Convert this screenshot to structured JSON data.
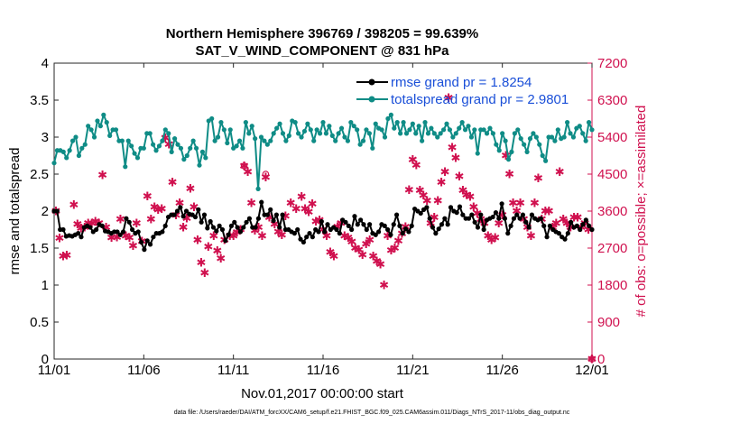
{
  "chart_data": {
    "type": "line",
    "title": "Northern Hemisphere 396769 / 398205 = 99.639%",
    "subtitle": "SAT_V_WIND_COMPONENT @ 831 hPa",
    "xlabel": "Nov.01,2017 00:00:00 start",
    "ylabel": "rmse and totalspread",
    "ylabel_right": "# of obs: o=possible; ×=assimilated",
    "footer": "data file: /Users/raeder/DAI/ATM_forcXX/CAM6_setup/f.e21.FHIST_BGC.f09_025.CAM6assim.011/Diags_NTrS_2017-11/obs_diag_output.nc",
    "x_tick_labels": [
      "11/01",
      "11/06",
      "11/11",
      "11/16",
      "11/21",
      "11/26",
      "12/01"
    ],
    "xlim": [
      0,
      30
    ],
    "ylim": [
      0,
      4
    ],
    "yticks": [
      0,
      0.5,
      1,
      1.5,
      2,
      2.5,
      3,
      3.5,
      4
    ],
    "y_tick_labels": [
      "0",
      "0.5",
      "1",
      "1.5",
      "2",
      "2.5",
      "3",
      "3.5",
      "4"
    ],
    "ylim_right": [
      0,
      7200
    ],
    "yticks_right": [
      0,
      900,
      1800,
      2700,
      3600,
      4500,
      5400,
      6300,
      7200
    ],
    "y_tick_labels_right": [
      "0",
      "900",
      "1800",
      "2700",
      "3600",
      "4500",
      "5400",
      "6300",
      "7200"
    ],
    "legend_position": "top-right",
    "colors": {
      "rmse": "#000000",
      "spread": "#0f8c86",
      "obs": "#d0114f",
      "legend_text": "#1a4fd8",
      "right_axis": "#d0114f"
    },
    "series": [
      {
        "name": "rmse grand pr = 1.8254",
        "axis": "left",
        "values": [
          2.0,
          2.0,
          1.75,
          1.75,
          1.66,
          1.67,
          1.66,
          1.68,
          1.7,
          1.65,
          1.78,
          1.8,
          1.78,
          1.72,
          1.75,
          1.82,
          1.8,
          1.73,
          1.72,
          1.7,
          1.72,
          1.72,
          1.68,
          1.72,
          1.9,
          1.85,
          1.75,
          1.7,
          1.72,
          1.58,
          1.48,
          1.6,
          1.55,
          1.65,
          1.7,
          1.7,
          1.72,
          1.8,
          1.92,
          1.95,
          1.95,
          2.0,
          2.05,
          1.93,
          2.0,
          1.96,
          1.95,
          1.92,
          2.02,
          1.85,
          1.95,
          1.77,
          1.86,
          1.78,
          1.73,
          1.8,
          1.75,
          1.6,
          1.68,
          1.8,
          1.85,
          1.78,
          1.72,
          1.78,
          1.85,
          1.9,
          1.78,
          1.78,
          1.9,
          2.12,
          1.95,
          1.95,
          2.02,
          1.87,
          1.95,
          1.78,
          1.95,
          1.75,
          1.75,
          1.72,
          1.7,
          1.75,
          1.62,
          1.58,
          1.65,
          1.7,
          1.65,
          1.75,
          1.72,
          1.86,
          1.72,
          1.82,
          1.75,
          1.78,
          1.75,
          1.7,
          1.88,
          1.85,
          1.8,
          1.75,
          1.93,
          1.82,
          1.88,
          1.82,
          1.75,
          1.82,
          1.7,
          1.68,
          1.72,
          1.82,
          1.8,
          1.75,
          1.68,
          1.82,
          1.95,
          1.8,
          1.7,
          1.76,
          1.72,
          1.8,
          2.03,
          2.0,
          1.97,
          2.02,
          2.05,
          1.9,
          1.78,
          1.7,
          1.76,
          1.82,
          1.9,
          1.82,
          2.05,
          2.0,
          1.98,
          2.06,
          1.95,
          1.9,
          1.9,
          1.95,
          1.85,
          1.78,
          1.95,
          1.75,
          1.88,
          1.9,
          1.92,
          1.98,
          1.9,
          2.1,
          1.9,
          1.7,
          1.8,
          1.9,
          1.95,
          1.9,
          1.95,
          1.85,
          1.78,
          1.95,
          1.9,
          1.88,
          1.9,
          1.8,
          1.65,
          1.8,
          1.75,
          1.72,
          1.7,
          1.65,
          1.62,
          1.7,
          1.85,
          1.78,
          1.8,
          1.75,
          1.82,
          1.88,
          1.8,
          1.75
        ]
      },
      {
        "name": "totalspread grand pr = 2.9801",
        "axis": "left",
        "values": [
          2.65,
          2.82,
          2.82,
          2.8,
          2.72,
          2.82,
          2.95,
          3.0,
          2.75,
          2.85,
          2.9,
          3.15,
          3.1,
          3.0,
          3.22,
          3.15,
          3.3,
          3.2,
          3.02,
          3.1,
          3.1,
          2.95,
          2.95,
          2.6,
          2.95,
          2.88,
          2.78,
          2.72,
          2.85,
          2.85,
          3.05,
          3.05,
          2.9,
          2.82,
          2.88,
          2.95,
          3.1,
          3.05,
          2.8,
          2.98,
          2.9,
          2.85,
          2.7,
          2.75,
          2.85,
          2.95,
          2.85,
          2.62,
          2.8,
          2.72,
          3.22,
          3.25,
          2.95,
          3.0,
          3.2,
          3.1,
          2.92,
          3.1,
          2.85,
          2.88,
          2.95,
          2.85,
          3.2,
          3.05,
          3.15,
          2.98,
          2.3,
          3.0,
          2.95,
          2.9,
          2.95,
          3.05,
          3.12,
          3.18,
          3.05,
          2.95,
          3.02,
          3.22,
          3.2,
          3.05,
          3.0,
          3.08,
          3.18,
          3.1,
          2.95,
          3.1,
          3.05,
          3.2,
          3.05,
          3.15,
          3.02,
          2.95,
          3.05,
          3.12,
          3.0,
          2.95,
          3.2,
          3.15,
          3.1,
          2.9,
          2.95,
          3.1,
          3.05,
          2.85,
          3.18,
          3.12,
          3.1,
          3.0,
          3.25,
          3.3,
          3.12,
          3.2,
          3.05,
          3.2,
          3.05,
          3.1,
          3.18,
          3.05,
          3.15,
          2.95,
          3.2,
          3.05,
          3.12,
          3.05,
          3.0,
          3.05,
          3.1,
          3.18,
          3.1,
          3.0,
          3.05,
          3.12,
          3.2,
          3.1,
          3.15,
          3.0,
          3.1,
          2.78,
          3.1,
          3.1,
          3.05,
          3.12,
          3.05,
          2.9,
          2.82,
          3.05,
          2.95,
          2.7,
          2.8,
          3.05,
          3.1,
          2.98,
          2.9,
          2.8,
          2.98,
          3.05,
          3.0,
          2.9,
          2.75,
          2.68,
          3.0,
          3.0,
          2.95,
          3.1,
          2.98,
          3.0,
          3.2,
          3.05,
          3.0,
          3.12,
          3.15,
          3.05,
          2.95,
          3.2,
          3.1
        ]
      },
      {
        "name": "obs assimilated",
        "axis": "right",
        "marker": "star",
        "points": [
          [
            0.1,
            3600
          ],
          [
            0.3,
            2940
          ],
          [
            0.5,
            2500
          ],
          [
            0.7,
            2520
          ],
          [
            1.1,
            3750
          ],
          [
            1.3,
            3280
          ],
          [
            1.5,
            3180
          ],
          [
            1.7,
            3200
          ],
          [
            1.9,
            3300
          ],
          [
            2.1,
            3300
          ],
          [
            2.3,
            3350
          ],
          [
            2.5,
            3300
          ],
          [
            2.7,
            4480
          ],
          [
            2.9,
            3200
          ],
          [
            3.2,
            2950
          ],
          [
            3.5,
            2960
          ],
          [
            3.7,
            3400
          ],
          [
            4.0,
            3000
          ],
          [
            4.2,
            2950
          ],
          [
            4.4,
            2750
          ],
          [
            4.6,
            3300
          ],
          [
            4.9,
            2860
          ],
          [
            5.2,
            3960
          ],
          [
            5.4,
            3400
          ],
          [
            5.6,
            3700
          ],
          [
            5.8,
            3630
          ],
          [
            6.0,
            3650
          ],
          [
            6.2,
            5380
          ],
          [
            6.4,
            5220
          ],
          [
            6.6,
            4300
          ],
          [
            6.8,
            3500
          ],
          [
            7.0,
            3800
          ],
          [
            7.2,
            3200
          ],
          [
            7.4,
            3420
          ],
          [
            7.6,
            4150
          ],
          [
            7.8,
            3700
          ],
          [
            8.0,
            2900
          ],
          [
            8.2,
            2350
          ],
          [
            8.4,
            2100
          ],
          [
            8.6,
            2730
          ],
          [
            8.9,
            3000
          ],
          [
            9.1,
            2630
          ],
          [
            9.3,
            2450
          ],
          [
            9.5,
            2900
          ],
          [
            9.8,
            3000
          ],
          [
            10.0,
            3000
          ],
          [
            10.2,
            3080
          ],
          [
            10.4,
            3150
          ],
          [
            10.6,
            4700
          ],
          [
            10.8,
            4550
          ],
          [
            11.0,
            3800
          ],
          [
            11.2,
            3130
          ],
          [
            11.4,
            3200
          ],
          [
            11.6,
            3000
          ],
          [
            11.8,
            4420
          ],
          [
            12.0,
            3450
          ],
          [
            12.3,
            3280
          ],
          [
            12.5,
            3100
          ],
          [
            12.7,
            3020
          ],
          [
            12.9,
            3480
          ],
          [
            13.2,
            3800
          ],
          [
            13.5,
            3650
          ],
          [
            13.8,
            3950
          ],
          [
            14.0,
            3650
          ],
          [
            14.2,
            3580
          ],
          [
            14.4,
            3780
          ],
          [
            14.6,
            3350
          ],
          [
            14.8,
            3380
          ],
          [
            15.0,
            3150
          ],
          [
            15.2,
            3000
          ],
          [
            15.4,
            2600
          ],
          [
            15.6,
            2500
          ],
          [
            15.8,
            3220
          ],
          [
            16.0,
            3300
          ],
          [
            16.2,
            3000
          ],
          [
            16.4,
            2950
          ],
          [
            16.6,
            2850
          ],
          [
            16.8,
            2700
          ],
          [
            17.0,
            2660
          ],
          [
            17.2,
            2540
          ],
          [
            17.4,
            2800
          ],
          [
            17.6,
            2900
          ],
          [
            17.8,
            2500
          ],
          [
            18.0,
            2380
          ],
          [
            18.2,
            2300
          ],
          [
            18.4,
            1800
          ],
          [
            18.6,
            3000
          ],
          [
            18.8,
            2650
          ],
          [
            19.0,
            2700
          ],
          [
            19.2,
            2880
          ],
          [
            19.4,
            3050
          ],
          [
            19.6,
            3220
          ],
          [
            19.8,
            4120
          ],
          [
            20.0,
            4850
          ],
          [
            20.2,
            4720
          ],
          [
            20.4,
            4100
          ],
          [
            20.6,
            3980
          ],
          [
            20.8,
            3850
          ],
          [
            21.0,
            3300
          ],
          [
            21.2,
            3450
          ],
          [
            21.4,
            3850
          ],
          [
            21.6,
            4300
          ],
          [
            21.8,
            4550
          ],
          [
            22.0,
            6350
          ],
          [
            22.2,
            5150
          ],
          [
            22.4,
            4900
          ],
          [
            22.6,
            4450
          ],
          [
            22.8,
            4100
          ],
          [
            23.0,
            4000
          ],
          [
            23.2,
            3950
          ],
          [
            23.4,
            3700
          ],
          [
            23.6,
            3550
          ],
          [
            23.8,
            3400
          ],
          [
            24.0,
            3300
          ],
          [
            24.2,
            3000
          ],
          [
            24.4,
            2900
          ],
          [
            24.6,
            2950
          ],
          [
            24.8,
            3300
          ],
          [
            25.0,
            3500
          ],
          [
            25.2,
            4950
          ],
          [
            25.4,
            4500
          ],
          [
            25.6,
            3800
          ],
          [
            25.8,
            3600
          ],
          [
            26.0,
            3800
          ],
          [
            26.2,
            3400
          ],
          [
            26.4,
            3200
          ],
          [
            26.6,
            3000
          ],
          [
            26.8,
            3800
          ],
          [
            27.0,
            4400
          ],
          [
            27.2,
            3400
          ],
          [
            27.4,
            3600
          ],
          [
            27.6,
            3600
          ],
          [
            27.8,
            3200
          ],
          [
            28.0,
            3300
          ],
          [
            28.2,
            4550
          ],
          [
            28.4,
            3400
          ],
          [
            28.6,
            3300
          ],
          [
            28.8,
            3200
          ],
          [
            29.0,
            3450
          ],
          [
            29.2,
            3450
          ],
          [
            29.4,
            3200
          ],
          [
            29.6,
            3300
          ],
          [
            29.8,
            3150
          ],
          [
            30.0,
            0
          ]
        ]
      },
      {
        "name": "obs possible",
        "axis": "right",
        "marker": "circle",
        "points": [
          [
            10.6,
            4700
          ],
          [
            11.8,
            4500
          ],
          [
            30.0,
            0
          ]
        ]
      }
    ]
  }
}
